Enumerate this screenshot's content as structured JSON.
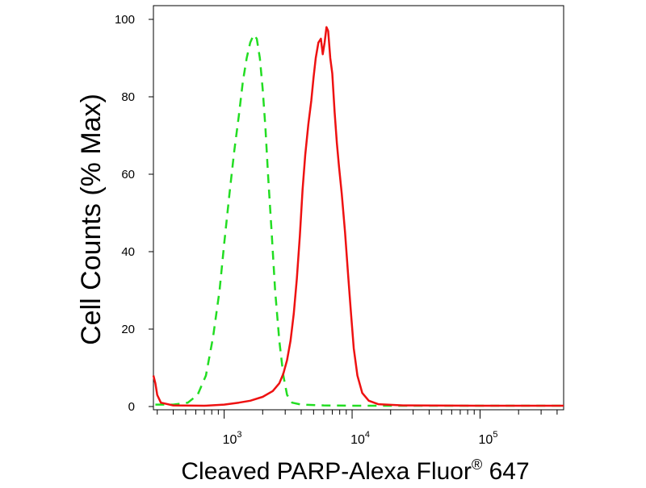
{
  "chart_data": {
    "type": "line",
    "title": "",
    "xlabel": "Cleaved PARP-Alexa Fluor",
    "xlabel_superscript": "®",
    "xlabel_suffix": " 647",
    "ylabel": "Cell Counts (% Max)",
    "x_scale": "log",
    "xlim": [
      280,
      450000
    ],
    "ylim": [
      0,
      100
    ],
    "grid": false,
    "legend": "none",
    "y_ticks": [
      0,
      20,
      40,
      60,
      80,
      100
    ],
    "x_major_ticks": [
      {
        "value": 1000,
        "base": "10",
        "exp": "3"
      },
      {
        "value": 10000,
        "base": "10",
        "exp": "4"
      },
      {
        "value": 100000,
        "base": "10",
        "exp": "5"
      }
    ],
    "series": [
      {
        "color": "#22dd22",
        "style": "dashed",
        "points": [
          [
            290,
            0.5
          ],
          [
            400,
            0.5
          ],
          [
            520,
            1
          ],
          [
            620,
            3
          ],
          [
            720,
            8
          ],
          [
            820,
            18
          ],
          [
            920,
            30
          ],
          [
            1000,
            42
          ],
          [
            1100,
            55
          ],
          [
            1200,
            66
          ],
          [
            1300,
            75
          ],
          [
            1400,
            84
          ],
          [
            1500,
            90
          ],
          [
            1600,
            94
          ],
          [
            1700,
            96
          ],
          [
            1800,
            95
          ],
          [
            1900,
            90
          ],
          [
            2000,
            82
          ],
          [
            2100,
            72
          ],
          [
            2200,
            60
          ],
          [
            2350,
            45
          ],
          [
            2500,
            30
          ],
          [
            2700,
            17
          ],
          [
            2900,
            8
          ],
          [
            3100,
            3
          ],
          [
            3400,
            1
          ],
          [
            4000,
            0.5
          ],
          [
            6000,
            0.3
          ],
          [
            10000,
            0.2
          ],
          [
            50000,
            0.2
          ],
          [
            450000,
            0.2
          ]
        ]
      },
      {
        "color": "#ee1111",
        "style": "solid",
        "points": [
          [
            280,
            8
          ],
          [
            290,
            6
          ],
          [
            300,
            3
          ],
          [
            320,
            1
          ],
          [
            400,
            0.3
          ],
          [
            700,
            0.2
          ],
          [
            1000,
            0.5
          ],
          [
            1300,
            1
          ],
          [
            1600,
            1.5
          ],
          [
            2000,
            2.5
          ],
          [
            2400,
            4
          ],
          [
            2700,
            6
          ],
          [
            2900,
            8.5
          ],
          [
            3100,
            12
          ],
          [
            3300,
            17
          ],
          [
            3500,
            24
          ],
          [
            3700,
            33
          ],
          [
            3900,
            44
          ],
          [
            4100,
            56
          ],
          [
            4300,
            65
          ],
          [
            4550,
            73
          ],
          [
            4800,
            79
          ],
          [
            5000,
            85
          ],
          [
            5200,
            90
          ],
          [
            5450,
            94
          ],
          [
            5700,
            95
          ],
          [
            5900,
            91
          ],
          [
            6100,
            94
          ],
          [
            6300,
            98
          ],
          [
            6500,
            97
          ],
          [
            6750,
            90
          ],
          [
            7000,
            86
          ],
          [
            7300,
            76
          ],
          [
            7600,
            68
          ],
          [
            7900,
            62
          ],
          [
            8300,
            55
          ],
          [
            8800,
            45
          ],
          [
            9300,
            34
          ],
          [
            9800,
            24
          ],
          [
            10300,
            15
          ],
          [
            11000,
            8
          ],
          [
            12000,
            3.5
          ],
          [
            13500,
            1.5
          ],
          [
            16000,
            0.6
          ],
          [
            25000,
            0.3
          ],
          [
            100000,
            0.2
          ],
          [
            450000,
            0.2
          ]
        ]
      }
    ]
  }
}
